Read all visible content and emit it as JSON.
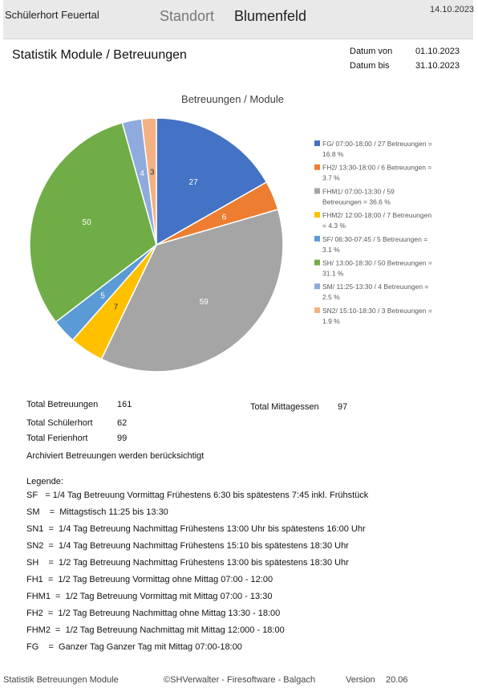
{
  "header": {
    "app_title": "Schülerhort Feuertal",
    "location_label": "Standort",
    "location_value": "Blumenfeld",
    "print_date": "14.10.2023"
  },
  "report": {
    "title": "Statistik Module / Betreuungen",
    "date_from_label": "Datum von",
    "date_from_value": "01.10.2023",
    "date_to_label": "Datum bis",
    "date_to_value": "31.10.2023"
  },
  "chart_data": {
    "type": "pie",
    "title": "Betreuungen / Module",
    "categories": [
      "FG",
      "FH2",
      "FHM1",
      "FHM2",
      "SF",
      "SH",
      "SM",
      "SN2"
    ],
    "values": [
      27,
      6,
      59,
      7,
      5,
      50,
      4,
      3
    ],
    "colors": [
      "#4472c4",
      "#ed7d31",
      "#a5a5a5",
      "#ffc000",
      "#5b9bd5",
      "#70ad47",
      "#8faadc",
      "#f4b183"
    ],
    "legend_position": "right",
    "legend": [
      [
        "FG/ 07:00-18:00 /  27 Betreuungen =",
        "16.8 %"
      ],
      [
        "FH2/ 13:30-18:00 /  6 Betreuungen =",
        "3.7 %"
      ],
      [
        "FHM1/ 07:00-13:30 /  59",
        "Betreuungen = 36.6 %"
      ],
      [
        "FHM2/ 12:00-18:00 /  7 Betreuungen",
        "= 4.3 %"
      ],
      [
        "SF/ 06:30-07:45 / 5 Betreuungen =",
        "3.1 %"
      ],
      [
        "SH/ 13:00-18:30 /  50 Betreuungen =",
        "31.1 %"
      ],
      [
        "SM/ 11:25-13:30 / 4 Betreuungen =",
        "2.5 %"
      ],
      [
        "SN2/ 15:10-18:30 /  3 Betreuungen =",
        "1.9 %"
      ]
    ]
  },
  "stats": {
    "total_betreuungen_label": "Total Betreuungen",
    "total_betreuungen_value": "161",
    "total_schuelerhort_label": "Total Schülerhort",
    "total_schuelerhort_value": "62",
    "total_ferienhort_label": "Total Ferienhort",
    "total_ferienhort_value": "99",
    "total_mittagessen_label": "Total Mittagessen",
    "total_mittagessen_value": "97",
    "archived_note": "Archiviert Betreuungen werden berücksichtigt"
  },
  "legend_block": {
    "title": "Legende:",
    "items": [
      "SF   = 1/4 Tag Betreuung Vormittag Frühestens 6:30 bis spätestens 7:45 inkl. Frühstück",
      "SM    =  Mittagstisch 11:25 bis 13:30",
      "SN1  =  1/4 Tag Betreuung Nachmittag Frühestens 13:00 Uhr bis spätestens 16:00 Uhr",
      "SN2  =  1/4 Tag Betreuung Nachmittag Frühestens 15:10 bis spätestens 18:30 Uhr",
      "SH    =  1/2 Tag Betreuung Nachmittag Frühestens 13:00 bis spätestens 18:30 Uhr",
      "FH1  =  1/2 Tag Betreuung Vormittag ohne Mittag 07:00 - 12:00",
      "FHM1  =  1/2 Tag Betreuung Vormittag mit Mittag 07:00 - 13:30",
      "FH2  =  1/2 Tag Betreuung Nachmittag ohne Mittag 13:30 - 18:00",
      "FHM2  =  1/2 Tag Betreuung Nachmittag mit Mittag 12:000 - 18:00",
      "FG    =  Ganzer Tag Ganzer Tag mit Mittag 07:00-18:00"
    ]
  },
  "footer": {
    "report_name": "Statistik Betreuungen Module",
    "copyright": "©SHVerwalter - Firesoftware - Balgach",
    "version_label": "Version",
    "version_value": "20.06"
  }
}
